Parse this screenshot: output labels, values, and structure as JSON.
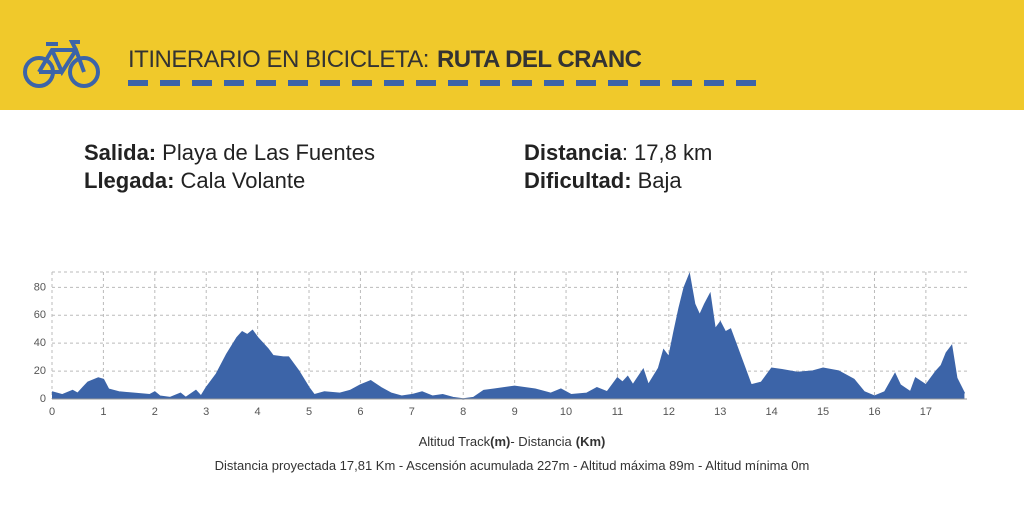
{
  "header": {
    "title_regular": "ITINERARIO EN BICICLETA:",
    "title_bold": "RUTA DEL CRANC"
  },
  "info": [
    {
      "label": "Salida:",
      "value": "Playa de Las Fuentes"
    },
    {
      "label": "Llegada:",
      "value": "Cala Volante"
    },
    {
      "label": "Distancia",
      "value": ": 17,8 km"
    },
    {
      "label": "Dificultad:",
      "value": "Baja"
    }
  ],
  "chart_data": {
    "type": "area",
    "x": [
      0,
      0.2,
      0.4,
      0.5,
      0.6,
      0.7,
      0.9,
      1.0,
      1.1,
      1.3,
      1.6,
      1.9,
      2.0,
      2.1,
      2.3,
      2.5,
      2.6,
      2.8,
      2.9,
      3.0,
      3.2,
      3.4,
      3.6,
      3.7,
      3.8,
      3.9,
      4.0,
      4.2,
      4.3,
      4.5,
      4.6,
      4.8,
      5.0,
      5.1,
      5.3,
      5.6,
      5.8,
      6.0,
      6.2,
      6.4,
      6.6,
      6.8,
      7.0,
      7.2,
      7.4,
      7.6,
      7.8,
      8.0,
      8.2,
      8.4,
      8.6,
      9.0,
      9.4,
      9.7,
      9.9,
      10.1,
      10.4,
      10.6,
      10.8,
      11.0,
      11.1,
      11.2,
      11.3,
      11.5,
      11.6,
      11.8,
      11.9,
      12.0,
      12.1,
      12.2,
      12.3,
      12.4,
      12.5,
      12.6,
      12.7,
      12.8,
      12.9,
      13.0,
      13.1,
      13.2,
      13.3,
      13.5,
      13.6,
      13.8,
      14.0,
      14.2,
      14.5,
      14.8,
      15.0,
      15.3,
      15.6,
      15.8,
      16.0,
      16.2,
      16.4,
      16.5,
      16.7,
      16.8,
      17.0,
      17.2,
      17.3,
      17.4,
      17.5,
      17.6,
      17.75
    ],
    "values": [
      5,
      3,
      6,
      4,
      8,
      12,
      15,
      14,
      7,
      5,
      4,
      3,
      5,
      2,
      1,
      4,
      1,
      6,
      2,
      8,
      18,
      32,
      44,
      48,
      46,
      49,
      44,
      36,
      31,
      30,
      30,
      20,
      8,
      3,
      5,
      4,
      6,
      10,
      13,
      8,
      4,
      2,
      3,
      5,
      2,
      3,
      1,
      0,
      1,
      6,
      7,
      9,
      7,
      4,
      7,
      3,
      4,
      8,
      5,
      15,
      12,
      16,
      10,
      21,
      10,
      22,
      35,
      30,
      48,
      65,
      80,
      89,
      68,
      60,
      68,
      75,
      50,
      55,
      48,
      50,
      40,
      20,
      10,
      12,
      22,
      21,
      19,
      20,
      22,
      20,
      14,
      5,
      2,
      5,
      18,
      10,
      5,
      15,
      10,
      20,
      24,
      33,
      38,
      15,
      4
    ],
    "color": "#3c64a8",
    "xlim": [
      0,
      17.8
    ],
    "ylim": [
      0,
      91
    ],
    "xticks": [
      0,
      1,
      2,
      3,
      4,
      5,
      6,
      7,
      8,
      9,
      10,
      11,
      12,
      13,
      14,
      15,
      16,
      17
    ],
    "yticks": [
      0,
      20,
      40,
      60,
      80
    ],
    "grid": true,
    "caption": [
      "Altitud Track",
      "(m)",
      "- Distancia",
      "(Km)"
    ],
    "stats": "Distancia proyectada 17,81 Km - Ascensión acumulada 227m - Altitud máxima 89m - Altitud mínima 0m"
  }
}
